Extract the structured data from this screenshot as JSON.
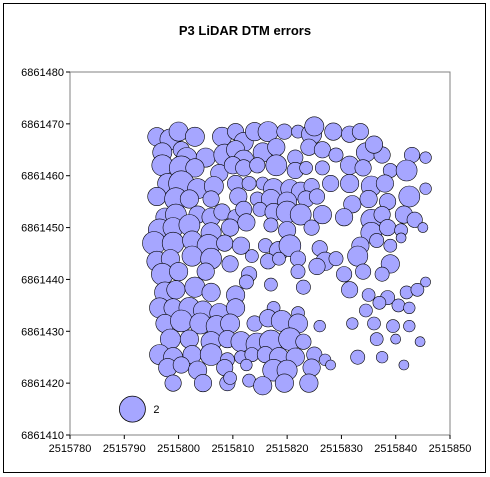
{
  "chart_data": {
    "type": "bubble",
    "title": "P3 LiDAR DTM errors",
    "xlabel": "",
    "ylabel": "",
    "xlim": [
      2515780,
      2515850
    ],
    "ylim": [
      6861410,
      6861480
    ],
    "x_ticks": [
      "2515780",
      "2515790",
      "2515800",
      "2515810",
      "2515820",
      "2515830",
      "2515840",
      "2515850"
    ],
    "y_ticks": [
      "6861410",
      "6861420",
      "6861430",
      "6861440",
      "6861450",
      "6861460",
      "6861470",
      "6861480"
    ],
    "grid": false,
    "legend": {
      "position": "bottom-left",
      "reference_x": 2515791.5,
      "reference_y": 6861415,
      "reference_size": 2,
      "label": "2"
    },
    "bubble_color": "#A6A6FF",
    "bubble_edge_color": "#000000",
    "points": [
      [
        2515796.0,
        6861467.5,
        1.0
      ],
      [
        2515798.5,
        6861467.0,
        1.3
      ],
      [
        2515800.0,
        6861468.5,
        1.1
      ],
      [
        2515803.0,
        6861467.5,
        1.1
      ],
      [
        2515808.0,
        6861467.5,
        1.1
      ],
      [
        2515810.5,
        6861468.5,
        0.8
      ],
      [
        2515812.0,
        6861466.5,
        1.1
      ],
      [
        2515814.0,
        6861468.5,
        1.0
      ],
      [
        2515816.5,
        6861468.5,
        1.2
      ],
      [
        2515819.5,
        6861468.5,
        0.7
      ],
      [
        2515822.0,
        6861468.5,
        0.5
      ],
      [
        2515824.5,
        6861468.0,
        1.2
      ],
      [
        2515825.0,
        6861469.5,
        1.1
      ],
      [
        2515828.5,
        6861468.5,
        0.9
      ],
      [
        2515831.5,
        6861468.0,
        0.8
      ],
      [
        2515833.5,
        6861468.5,
        0.8
      ],
      [
        2515797.0,
        6861464.5,
        1.1
      ],
      [
        2515800.5,
        6861465.0,
        0.8
      ],
      [
        2515801.5,
        6861463.5,
        1.2
      ],
      [
        2515805.0,
        6861463.5,
        1.1
      ],
      [
        2515808.5,
        6861464.0,
        1.4
      ],
      [
        2515810.5,
        6861465.0,
        1.0
      ],
      [
        2515812.0,
        6861463.0,
        1.2
      ],
      [
        2515815.5,
        6861464.5,
        1.1
      ],
      [
        2515818.0,
        6861465.5,
        0.9
      ],
      [
        2515821.5,
        6861463.5,
        0.7
      ],
      [
        2515824.0,
        6861465.5,
        0.8
      ],
      [
        2515826.5,
        6861465.0,
        0.8
      ],
      [
        2515829.0,
        6861464.0,
        0.6
      ],
      [
        2515834.5,
        6861464.5,
        1.1
      ],
      [
        2515837.5,
        6861464.0,
        0.8
      ],
      [
        2515836.0,
        6861466.0,
        0.9
      ],
      [
        2515839.0,
        6861461.0,
        0.6
      ],
      [
        2515843.0,
        6861464.0,
        0.7
      ],
      [
        2515845.5,
        6861463.5,
        0.4
      ],
      [
        2515797.0,
        6861462.0,
        1.3
      ],
      [
        2515800.5,
        6861461.5,
        1.7
      ],
      [
        2515803.0,
        6861461.5,
        1.0
      ],
      [
        2515807.5,
        6861460.5,
        0.9
      ],
      [
        2515810.0,
        6861462.0,
        0.9
      ],
      [
        2515812.0,
        6861461.5,
        0.8
      ],
      [
        2515814.5,
        6861462.0,
        0.7
      ],
      [
        2515818.0,
        6861462.0,
        1.3
      ],
      [
        2515821.5,
        6861461.0,
        0.8
      ],
      [
        2515823.5,
        6861461.5,
        0.5
      ],
      [
        2515826.5,
        6861461.5,
        0.6
      ],
      [
        2515831.5,
        6861462.0,
        1.0
      ],
      [
        2515834.0,
        6861461.5,
        0.8
      ],
      [
        2515842.0,
        6861461.0,
        1.3
      ],
      [
        2515798.0,
        6861458.5,
        1.2
      ],
      [
        2515800.5,
        6861458.5,
        1.9
      ],
      [
        2515803.5,
        6861457.5,
        1.2
      ],
      [
        2515806.5,
        6861458.0,
        1.1
      ],
      [
        2515810.5,
        6861458.5,
        0.8
      ],
      [
        2515813.0,
        6861458.5,
        0.6
      ],
      [
        2515815.5,
        6861458.5,
        0.5
      ],
      [
        2515817.5,
        6861457.5,
        1.2
      ],
      [
        2515820.5,
        6861457.5,
        1.0
      ],
      [
        2515822.5,
        6861457.0,
        1.0
      ],
      [
        2515824.5,
        6861458.0,
        0.7
      ],
      [
        2515828.0,
        6861458.5,
        0.8
      ],
      [
        2515831.5,
        6861458.5,
        1.0
      ],
      [
        2515835.5,
        6861458.0,
        1.2
      ],
      [
        2515838.0,
        6861458.5,
        0.9
      ],
      [
        2515845.5,
        6861457.5,
        0.4
      ],
      [
        2515796.0,
        6861456.0,
        1.0
      ],
      [
        2515799.5,
        6861455.5,
        1.5
      ],
      [
        2515802.0,
        6861455.5,
        1.0
      ],
      [
        2515806.0,
        6861455.5,
        0.8
      ],
      [
        2515811.0,
        6861456.0,
        0.9
      ],
      [
        2515814.5,
        6861455.5,
        0.6
      ],
      [
        2515817.0,
        6861455.5,
        1.1
      ],
      [
        2515820.0,
        6861455.0,
        1.1
      ],
      [
        2515823.5,
        6861455.5,
        0.8
      ],
      [
        2515825.5,
        6861456.0,
        0.7
      ],
      [
        2515832.0,
        6861454.5,
        0.9
      ],
      [
        2515835.0,
        6861455.5,
        0.9
      ],
      [
        2515838.5,
        6861455.0,
        0.8
      ],
      [
        2515842.5,
        6861456.0,
        1.3
      ],
      [
        2515797.5,
        6861452.0,
        1.0
      ],
      [
        2515799.5,
        6861452.5,
        1.3
      ],
      [
        2515803.5,
        6861452.5,
        0.9
      ],
      [
        2515806.0,
        6861452.0,
        1.0
      ],
      [
        2515808.0,
        6861453.0,
        0.8
      ],
      [
        2515810.5,
        6861452.0,
        0.7
      ],
      [
        2515812.0,
        6861453.5,
        0.8
      ],
      [
        2515815.0,
        6861453.5,
        0.6
      ],
      [
        2515817.5,
        6861453.0,
        0.9
      ],
      [
        2515820.0,
        6861453.0,
        1.4
      ],
      [
        2515822.5,
        6861452.5,
        1.3
      ],
      [
        2515826.5,
        6861452.5,
        1.0
      ],
      [
        2515830.5,
        6861452.0,
        0.9
      ],
      [
        2515835.5,
        6861451.5,
        1.3
      ],
      [
        2515837.5,
        6861452.5,
        0.8
      ],
      [
        2515841.5,
        6861452.5,
        0.9
      ],
      [
        2515843.5,
        6861451.5,
        0.7
      ],
      [
        2515796.5,
        6861449.5,
        1.5
      ],
      [
        2515799.0,
        6861450.0,
        1.2
      ],
      [
        2515802.0,
        6861450.5,
        1.3
      ],
      [
        2515806.0,
        6861449.0,
        1.2
      ],
      [
        2515809.5,
        6861450.0,
        0.9
      ],
      [
        2515812.5,
        6861451.0,
        0.9
      ],
      [
        2515817.0,
        6861450.5,
        0.6
      ],
      [
        2515820.0,
        6861449.5,
        0.9
      ],
      [
        2515824.5,
        6861450.0,
        0.7
      ],
      [
        2515835.5,
        6861449.0,
        1.3
      ],
      [
        2515838.5,
        6861450.0,
        0.8
      ],
      [
        2515841.0,
        6861449.5,
        0.5
      ],
      [
        2515845.0,
        6861450.0,
        0.3
      ],
      [
        2515795.5,
        6861447.0,
        1.6
      ],
      [
        2515799.0,
        6861447.0,
        1.4
      ],
      [
        2515802.5,
        6861447.5,
        1.1
      ],
      [
        2515805.5,
        6861446.5,
        1.5
      ],
      [
        2515808.5,
        6861447.0,
        0.8
      ],
      [
        2515811.5,
        6861446.5,
        0.9
      ],
      [
        2515816.0,
        6861446.5,
        0.6
      ],
      [
        2515818.5,
        6861445.5,
        1.1
      ],
      [
        2515820.5,
        6861446.5,
        1.4
      ],
      [
        2515826.0,
        6861446.0,
        0.7
      ],
      [
        2515833.5,
        6861446.5,
        0.9
      ],
      [
        2515836.5,
        6861447.5,
        0.6
      ],
      [
        2515839.0,
        6861446.5,
        0.5
      ],
      [
        2515841.0,
        6861448.0,
        0.3
      ],
      [
        2515796.0,
        6861443.5,
        1.2
      ],
      [
        2515798.5,
        6861444.0,
        1.0
      ],
      [
        2515802.5,
        6861444.5,
        1.2
      ],
      [
        2515806.0,
        6861444.0,
        1.3
      ],
      [
        2515809.5,
        6861443.0,
        0.8
      ],
      [
        2515813.5,
        6861444.5,
        0.5
      ],
      [
        2515816.5,
        6861443.5,
        0.7
      ],
      [
        2515818.5,
        6861444.0,
        0.5
      ],
      [
        2515822.0,
        6861444.0,
        0.7
      ],
      [
        2515827.0,
        6861443.5,
        1.0
      ],
      [
        2515829.0,
        6861444.0,
        0.6
      ],
      [
        2515833.0,
        6861444.5,
        1.2
      ],
      [
        2515839.0,
        6861443.0,
        1.0
      ],
      [
        2515797.0,
        6861441.0,
        1.4
      ],
      [
        2515800.0,
        6861441.5,
        1.0
      ],
      [
        2515805.0,
        6861441.5,
        0.9
      ],
      [
        2515813.0,
        6861441.0,
        0.7
      ],
      [
        2515822.0,
        6861441.5,
        0.6
      ],
      [
        2515825.5,
        6861442.5,
        0.8
      ],
      [
        2515830.5,
        6861441.0,
        0.7
      ],
      [
        2515834.0,
        6861441.5,
        0.7
      ],
      [
        2515837.5,
        6861441.0,
        0.6
      ],
      [
        2515797.5,
        6861437.5,
        1.3
      ],
      [
        2515799.5,
        6861438.0,
        1.0
      ],
      [
        2515803.0,
        6861438.5,
        1.2
      ],
      [
        2515806.0,
        6861437.5,
        1.0
      ],
      [
        2515810.5,
        6861437.0,
        1.0
      ],
      [
        2515812.5,
        6861439.5,
        0.6
      ],
      [
        2515817.0,
        6861439.0,
        0.5
      ],
      [
        2515823.0,
        6861438.5,
        0.6
      ],
      [
        2515831.5,
        6861438.0,
        0.8
      ],
      [
        2515835.0,
        6861437.0,
        0.5
      ],
      [
        2515838.5,
        6861436.5,
        0.6
      ],
      [
        2515842.0,
        6861437.5,
        0.5
      ],
      [
        2515844.0,
        6861438.0,
        0.5
      ],
      [
        2515845.5,
        6861439.5,
        0.3
      ],
      [
        2515796.5,
        6861434.5,
        1.2
      ],
      [
        2515799.0,
        6861434.5,
        1.0
      ],
      [
        2515802.0,
        6861434.5,
        1.3
      ],
      [
        2515804.5,
        6861434.0,
        1.1
      ],
      [
        2515807.5,
        6861433.5,
        1.1
      ],
      [
        2515810.5,
        6861434.5,
        1.0
      ],
      [
        2515817.5,
        6861434.5,
        0.5
      ],
      [
        2515822.0,
        6861433.5,
        0.5
      ],
      [
        2515834.5,
        6861434.0,
        0.5
      ],
      [
        2515837.0,
        6861435.5,
        0.5
      ],
      [
        2515840.5,
        6861435.0,
        0.5
      ],
      [
        2515842.5,
        6861434.5,
        0.4
      ],
      [
        2515797.5,
        6861431.5,
        1.0
      ],
      [
        2515800.5,
        6861432.0,
        1.4
      ],
      [
        2515804.0,
        6861431.5,
        1.3
      ],
      [
        2515807.0,
        6861431.0,
        1.3
      ],
      [
        2515809.5,
        6861431.5,
        1.1
      ],
      [
        2515814.0,
        6861431.5,
        0.7
      ],
      [
        2515816.5,
        6861432.5,
        0.9
      ],
      [
        2515819.0,
        6861432.0,
        1.3
      ],
      [
        2515822.0,
        6861431.5,
        1.1
      ],
      [
        2515826.0,
        6861431.0,
        0.4
      ],
      [
        2515832.0,
        6861431.5,
        0.4
      ],
      [
        2515836.0,
        6861431.5,
        0.5
      ],
      [
        2515839.5,
        6861431.0,
        0.5
      ],
      [
        2515842.5,
        6861431.0,
        0.4
      ],
      [
        2515798.5,
        6861428.5,
        1.2
      ],
      [
        2515802.0,
        6861428.5,
        1.0
      ],
      [
        2515806.0,
        6861428.0,
        1.2
      ],
      [
        2515809.0,
        6861428.5,
        0.9
      ],
      [
        2515811.5,
        6861428.0,
        1.2
      ],
      [
        2515814.5,
        6861427.5,
        1.5
      ],
      [
        2515817.0,
        6861428.0,
        1.6
      ],
      [
        2515820.5,
        6861428.5,
        1.5
      ],
      [
        2515823.0,
        6861428.0,
        0.7
      ],
      [
        2515836.5,
        6861428.5,
        0.5
      ],
      [
        2515840.0,
        6861428.5,
        0.3
      ],
      [
        2515844.5,
        6861428.0,
        0.3
      ],
      [
        2515796.5,
        6861425.5,
        1.2
      ],
      [
        2515799.0,
        6861425.0,
        1.1
      ],
      [
        2515802.5,
        6861425.5,
        1.0
      ],
      [
        2515806.0,
        6861425.5,
        1.4
      ],
      [
        2515809.0,
        6861424.5,
        0.6
      ],
      [
        2515811.5,
        6861425.0,
        0.5
      ],
      [
        2515813.5,
        6861425.5,
        0.6
      ],
      [
        2515816.0,
        6861425.5,
        0.8
      ],
      [
        2515818.5,
        6861425.0,
        1.1
      ],
      [
        2515821.5,
        6861425.0,
        1.0
      ],
      [
        2515825.0,
        6861425.5,
        0.7
      ],
      [
        2515827.0,
        6861424.5,
        0.4
      ],
      [
        2515833.0,
        6861425.0,
        0.6
      ],
      [
        2515837.5,
        6861425.0,
        0.4
      ],
      [
        2515798.0,
        6861423.0,
        1.0
      ],
      [
        2515800.5,
        6861423.5,
        0.8
      ],
      [
        2515803.5,
        6861422.5,
        1.0
      ],
      [
        2515808.5,
        6861423.0,
        0.8
      ],
      [
        2515812.5,
        6861423.5,
        0.4
      ],
      [
        2515817.5,
        6861422.5,
        1.4
      ],
      [
        2515820.0,
        6861422.5,
        1.2
      ],
      [
        2515824.5,
        6861423.0,
        0.9
      ],
      [
        2515828.0,
        6861423.5,
        0.3
      ],
      [
        2515841.5,
        6861423.5,
        0.3
      ],
      [
        2515799.0,
        6861420.0,
        0.8
      ],
      [
        2515804.5,
        6861420.0,
        0.9
      ],
      [
        2515809.0,
        6861420.0,
        0.7
      ],
      [
        2515813.0,
        6861420.5,
        0.5
      ],
      [
        2515815.5,
        6861419.5,
        1.0
      ],
      [
        2515819.5,
        6861420.0,
        1.0
      ],
      [
        2515824.0,
        6861420.0,
        1.0
      ],
      [
        2515809.5,
        6861421.0,
        0.5
      ]
    ]
  }
}
